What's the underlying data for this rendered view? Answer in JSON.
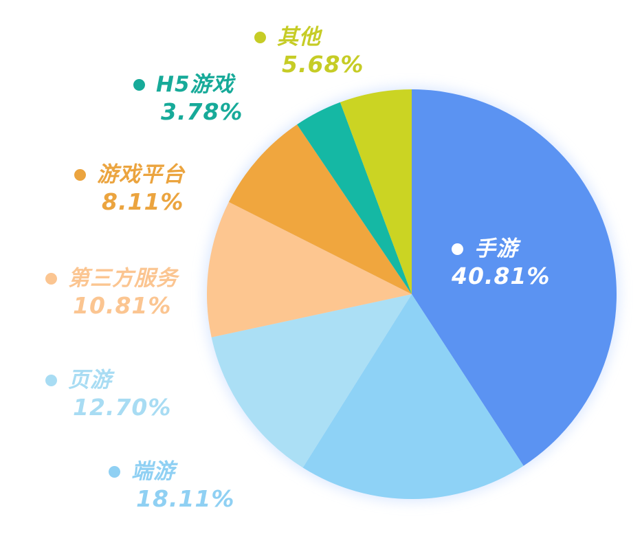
{
  "chart_data": {
    "type": "pie",
    "title": "",
    "slices": [
      {
        "name": "手游",
        "value": 40.81,
        "label": "40.81%",
        "color": "#5b93f2",
        "text_color": "#ffffff"
      },
      {
        "name": "端游",
        "value": 18.11,
        "label": "18.11%",
        "color": "#8ed2f6",
        "text_color": "#8fd0f3"
      },
      {
        "name": "页游",
        "value": 12.7,
        "label": "12.70%",
        "color": "#abdff5",
        "text_color": "#a8dcf3"
      },
      {
        "name": "第三方服务",
        "value": 10.81,
        "label": "10.81%",
        "color": "#fdc690",
        "text_color": "#fbc591"
      },
      {
        "name": "游戏平台",
        "value": 8.11,
        "label": "8.11%",
        "color": "#f0a63e",
        "text_color": "#eba43f"
      },
      {
        "name": "H5游戏",
        "value": 3.78,
        "label": "3.78%",
        "color": "#15b8a4",
        "text_color": "#17aa99"
      },
      {
        "name": "其他",
        "value": 5.68,
        "label": "5.68%",
        "color": "#cbd423",
        "text_color": "#c6cc26"
      }
    ]
  }
}
